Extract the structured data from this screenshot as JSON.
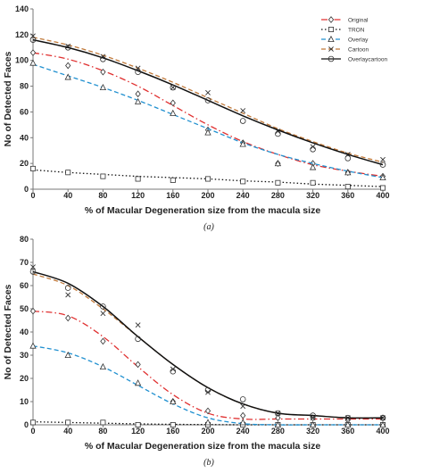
{
  "chart_data": [
    {
      "type": "line",
      "caption": "(a)",
      "xlabel": "% of  Macular Degeneration size from the macula size",
      "ylabel": "No of Detected Faces",
      "xlim": [
        0,
        400
      ],
      "ylim": [
        0,
        140
      ],
      "xticks": [
        "0",
        "40",
        "80",
        "120",
        "160",
        "200",
        "240",
        "280",
        "320",
        "360",
        "400"
      ],
      "yticks": [
        "0",
        "20",
        "40",
        "60",
        "80",
        "100",
        "120",
        "140"
      ],
      "grid": false,
      "legend_position": "top-right",
      "x": [
        0,
        40,
        80,
        120,
        160,
        200,
        240,
        280,
        320,
        360,
        400
      ],
      "series": [
        {
          "name": "Original",
          "color": "#e03030",
          "line": "dashdot",
          "marker": "diamond",
          "values": [
            106,
            96,
            91,
            74,
            67,
            46,
            36,
            20,
            20,
            13,
            10
          ],
          "fit": [
            106,
            101,
            92,
            80,
            65,
            50,
            37,
            27,
            19,
            14,
            10
          ]
        },
        {
          "name": "TRON",
          "color": "#111111",
          "line": "dotted",
          "marker": "square",
          "values": [
            16,
            13,
            10,
            8,
            7,
            8,
            6,
            5,
            5,
            2,
            1
          ],
          "fit": [
            15,
            13,
            11.5,
            10,
            9,
            8,
            6.5,
            5.5,
            4,
            3,
            2
          ]
        },
        {
          "name": "Overlay",
          "color": "#2090d0",
          "line": "dashed",
          "marker": "triangle",
          "values": [
            98,
            87,
            79,
            68,
            59,
            44,
            35,
            20,
            17,
            13,
            9
          ],
          "fit": [
            97,
            88,
            79,
            69,
            58,
            47,
            36,
            27,
            20,
            14,
            9
          ]
        },
        {
          "name": "Cartoon",
          "color": "#c07838",
          "line": "dashed",
          "marker": "x",
          "values": [
            119,
            111,
            103,
            94,
            79,
            75,
            61,
            45,
            33,
            27,
            23
          ],
          "fit": [
            118,
            112,
            104,
            94,
            83,
            71,
            59,
            47,
            37,
            28,
            21
          ]
        },
        {
          "name": "Overlaycartoon",
          "color": "#111111",
          "line": "solid",
          "marker": "circle",
          "values": [
            116,
            110,
            101,
            91,
            79,
            69,
            53,
            43,
            31,
            24,
            19
          ],
          "fit": [
            116,
            110,
            102,
            92,
            81,
            69,
            57,
            46,
            36,
            27,
            19
          ]
        }
      ]
    },
    {
      "type": "line",
      "caption": "(b)",
      "xlabel": "% of  Macular Degeneration size from the macula size",
      "ylabel": "No of Detected Faces",
      "xlim": [
        0,
        400
      ],
      "ylim": [
        0,
        80
      ],
      "xticks": [
        "0",
        "40",
        "80",
        "120",
        "160",
        "200",
        "240",
        "280",
        "320",
        "360",
        "400"
      ],
      "yticks": [
        "0",
        "10",
        "20",
        "30",
        "40",
        "50",
        "60",
        "70",
        "80"
      ],
      "grid": false,
      "x": [
        0,
        40,
        80,
        120,
        160,
        200,
        240,
        280,
        320,
        360,
        400
      ],
      "series": [
        {
          "name": "Original",
          "color": "#e03030",
          "line": "dashdot",
          "marker": "diamond",
          "values": [
            49,
            46,
            36,
            26,
            10,
            6,
            4,
            3,
            3,
            2,
            3
          ],
          "fit": [
            49,
            47,
            38,
            25,
            13,
            5,
            2.5,
            2.5,
            2.5,
            2.5,
            2.5
          ]
        },
        {
          "name": "TRON",
          "color": "#111111",
          "line": "dotted",
          "marker": "square",
          "values": [
            1,
            1,
            1,
            0,
            0,
            0,
            0,
            0,
            0,
            0,
            0
          ],
          "fit": [
            1.3,
            1.0,
            0.7,
            0.4,
            0.2,
            0.1,
            0,
            0,
            0,
            0,
            0
          ]
        },
        {
          "name": "Overlay",
          "color": "#2090d0",
          "line": "dashed",
          "marker": "triangle",
          "values": [
            34,
            30,
            25,
            18,
            10,
            1,
            1,
            0,
            0,
            0,
            0
          ],
          "fit": [
            34,
            31,
            25,
            17,
            9,
            3,
            0.5,
            0,
            0,
            0,
            0
          ]
        },
        {
          "name": "Cartoon",
          "color": "#c07838",
          "line": "dashed",
          "marker": "x",
          "values": [
            68,
            56,
            48,
            43,
            24,
            14,
            8,
            5,
            3,
            3,
            3
          ],
          "fit": [
            65,
            60,
            50,
            38,
            26,
            16,
            9,
            5,
            4,
            3,
            3
          ]
        },
        {
          "name": "Overlaycartoon",
          "color": "#111111",
          "line": "solid",
          "marker": "circle",
          "values": [
            66,
            59,
            51,
            37,
            23,
            15,
            11,
            5,
            4,
            3,
            3
          ],
          "fit": [
            66,
            61,
            51,
            38,
            26,
            16,
            9,
            5,
            4,
            3,
            3
          ]
        }
      ]
    }
  ]
}
